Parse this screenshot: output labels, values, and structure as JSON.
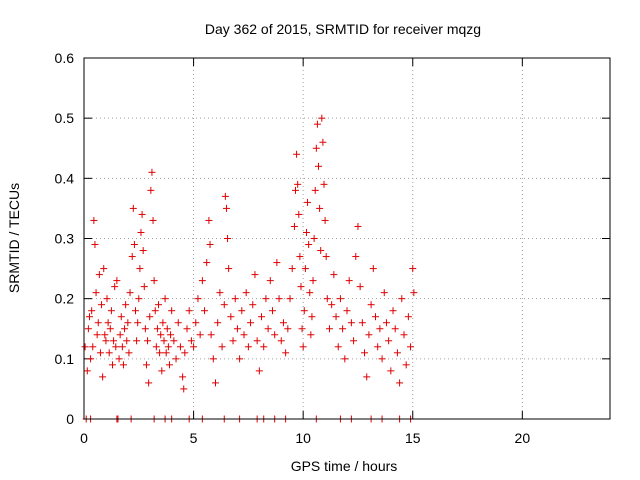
{
  "chart_data": {
    "type": "scatter",
    "title": "Day 362 of 2015, SRMTID for receiver mqzg",
    "xlabel": "GPS time / hours",
    "ylabel": "SRMTID / TECUs",
    "xlim": [
      0,
      24
    ],
    "ylim": [
      0,
      0.6
    ],
    "xticks": [
      "0",
      "5",
      "10",
      "15",
      "20"
    ],
    "yticks": [
      "0",
      "0.1",
      "0.2",
      "0.3",
      "0.4",
      "0.5",
      "0.6"
    ],
    "grid": true,
    "marker": "+",
    "color": "#e00000",
    "series": [
      {
        "name": "SRMTID",
        "points": [
          [
            0.05,
            0.12
          ],
          [
            0.1,
            0.0
          ],
          [
            0.15,
            0.08
          ],
          [
            0.2,
            0.15
          ],
          [
            0.25,
            0.17
          ],
          [
            0.3,
            0.1
          ],
          [
            0.35,
            0.18
          ],
          [
            0.4,
            0.12
          ],
          [
            0.45,
            0.33
          ],
          [
            0.5,
            0.29
          ],
          [
            0.55,
            0.21
          ],
          [
            0.6,
            0.14
          ],
          [
            0.65,
            0.16
          ],
          [
            0.7,
            0.24
          ],
          [
            0.75,
            0.11
          ],
          [
            0.8,
            0.19
          ],
          [
            0.85,
            0.07
          ],
          [
            0.9,
            0.25
          ],
          [
            0.95,
            0.14
          ],
          [
            1.0,
            0.13
          ],
          [
            1.05,
            0.2
          ],
          [
            1.1,
            0.16
          ],
          [
            1.15,
            0.11
          ],
          [
            1.2,
            0.15
          ],
          [
            1.25,
            0.18
          ],
          [
            1.3,
            0.09
          ],
          [
            1.35,
            0.13
          ],
          [
            1.4,
            0.22
          ],
          [
            1.45,
            0.12
          ],
          [
            1.5,
            0.23
          ],
          [
            1.55,
            0.0
          ],
          [
            1.6,
            0.1
          ],
          [
            1.65,
            0.14
          ],
          [
            1.7,
            0.17
          ],
          [
            1.75,
            0.12
          ],
          [
            1.8,
            0.09
          ],
          [
            1.85,
            0.15
          ],
          [
            1.9,
            0.19
          ],
          [
            1.95,
            0.13
          ],
          [
            2.0,
            0.16
          ],
          [
            2.05,
            0.11
          ],
          [
            2.1,
            0.21
          ],
          [
            2.15,
            0.0
          ],
          [
            2.2,
            0.27
          ],
          [
            2.25,
            0.35
          ],
          [
            2.3,
            0.29
          ],
          [
            2.35,
            0.18
          ],
          [
            2.4,
            0.13
          ],
          [
            2.45,
            0.16
          ],
          [
            2.5,
            0.2
          ],
          [
            2.55,
            0.25
          ],
          [
            2.6,
            0.31
          ],
          [
            2.65,
            0.34
          ],
          [
            2.7,
            0.28
          ],
          [
            2.75,
            0.22
          ],
          [
            2.8,
            0.15
          ],
          [
            2.85,
            0.09
          ],
          [
            2.9,
            0.13
          ],
          [
            2.95,
            0.06
          ],
          [
            3.0,
            0.17
          ],
          [
            3.05,
            0.38
          ],
          [
            3.1,
            0.41
          ],
          [
            3.15,
            0.33
          ],
          [
            3.2,
            0.23
          ],
          [
            3.25,
            0.18
          ],
          [
            3.3,
            0.12
          ],
          [
            3.35,
            0.15
          ],
          [
            3.4,
            0.19
          ],
          [
            3.45,
            0.11
          ],
          [
            3.5,
            0.14
          ],
          [
            3.55,
            0.08
          ],
          [
            3.6,
            0.16
          ],
          [
            3.65,
            0.13
          ],
          [
            3.7,
            0.2
          ],
          [
            3.75,
            0.11
          ],
          [
            3.8,
            0.15
          ],
          [
            3.85,
            0.12
          ],
          [
            3.9,
            0.09
          ],
          [
            3.95,
            0.14
          ],
          [
            4.0,
            0.18
          ],
          [
            4.1,
            0.13
          ],
          [
            4.2,
            0.1
          ],
          [
            4.3,
            0.16
          ],
          [
            4.4,
            0.12
          ],
          [
            4.5,
            0.07
          ],
          [
            4.55,
            0.05
          ],
          [
            4.6,
            0.11
          ],
          [
            4.7,
            0.15
          ],
          [
            4.8,
            0.18
          ],
          [
            4.9,
            0.13
          ],
          [
            5.0,
            0.12
          ],
          [
            5.1,
            0.16
          ],
          [
            5.2,
            0.2
          ],
          [
            5.3,
            0.14
          ],
          [
            5.4,
            0.23
          ],
          [
            5.5,
            0.18
          ],
          [
            5.6,
            0.26
          ],
          [
            5.7,
            0.33
          ],
          [
            5.75,
            0.29
          ],
          [
            5.8,
            0.14
          ],
          [
            5.9,
            0.1
          ],
          [
            6.0,
            0.06
          ],
          [
            6.1,
            0.16
          ],
          [
            6.2,
            0.21
          ],
          [
            6.3,
            0.12
          ],
          [
            6.4,
            0.19
          ],
          [
            6.45,
            0.37
          ],
          [
            6.5,
            0.35
          ],
          [
            6.55,
            0.3
          ],
          [
            6.6,
            0.25
          ],
          [
            6.7,
            0.17
          ],
          [
            6.8,
            0.13
          ],
          [
            6.9,
            0.2
          ],
          [
            7.0,
            0.15
          ],
          [
            7.1,
            0.1
          ],
          [
            7.2,
            0.18
          ],
          [
            7.3,
            0.14
          ],
          [
            7.4,
            0.21
          ],
          [
            7.5,
            0.12
          ],
          [
            7.6,
            0.16
          ],
          [
            7.7,
            0.19
          ],
          [
            7.8,
            0.24
          ],
          [
            7.9,
            0.13
          ],
          [
            8.0,
            0.08
          ],
          [
            8.1,
            0.17
          ],
          [
            8.2,
            0.12
          ],
          [
            8.3,
            0.2
          ],
          [
            8.4,
            0.15
          ],
          [
            8.5,
            0.23
          ],
          [
            8.6,
            0.18
          ],
          [
            8.7,
            0.14
          ],
          [
            8.8,
            0.26
          ],
          [
            8.9,
            0.2
          ],
          [
            9.0,
            0.13
          ],
          [
            9.1,
            0.16
          ],
          [
            9.2,
            0.11
          ],
          [
            9.3,
            0.15
          ],
          [
            9.4,
            0.2
          ],
          [
            9.5,
            0.25
          ],
          [
            9.6,
            0.32
          ],
          [
            9.65,
            0.38
          ],
          [
            9.7,
            0.44
          ],
          [
            9.75,
            0.39
          ],
          [
            9.8,
            0.34
          ],
          [
            9.85,
            0.27
          ],
          [
            9.9,
            0.22
          ],
          [
            9.95,
            0.15
          ],
          [
            10.0,
            0.12
          ],
          [
            10.05,
            0.18
          ],
          [
            10.1,
            0.25
          ],
          [
            10.15,
            0.31
          ],
          [
            10.2,
            0.36
          ],
          [
            10.25,
            0.29
          ],
          [
            10.3,
            0.21
          ],
          [
            10.35,
            0.14
          ],
          [
            10.4,
            0.17
          ],
          [
            10.45,
            0.23
          ],
          [
            10.5,
            0.3
          ],
          [
            10.55,
            0.38
          ],
          [
            10.6,
            0.45
          ],
          [
            10.65,
            0.49
          ],
          [
            10.7,
            0.42
          ],
          [
            10.75,
            0.35
          ],
          [
            10.8,
            0.28
          ],
          [
            10.85,
            0.5
          ],
          [
            10.9,
            0.46
          ],
          [
            10.95,
            0.39
          ],
          [
            11.0,
            0.33
          ],
          [
            11.05,
            0.27
          ],
          [
            11.1,
            0.2
          ],
          [
            11.2,
            0.15
          ],
          [
            11.3,
            0.19
          ],
          [
            11.4,
            0.24
          ],
          [
            11.5,
            0.17
          ],
          [
            11.6,
            0.12
          ],
          [
            11.7,
            0.2
          ],
          [
            11.8,
            0.15
          ],
          [
            11.9,
            0.1
          ],
          [
            12.0,
            0.18
          ],
          [
            12.1,
            0.23
          ],
          [
            12.2,
            0.16
          ],
          [
            12.3,
            0.13
          ],
          [
            12.4,
            0.27
          ],
          [
            12.5,
            0.32
          ],
          [
            12.6,
            0.22
          ],
          [
            12.7,
            0.16
          ],
          [
            12.8,
            0.11
          ],
          [
            12.9,
            0.07
          ],
          [
            13.0,
            0.14
          ],
          [
            13.1,
            0.19
          ],
          [
            13.2,
            0.25
          ],
          [
            13.3,
            0.17
          ],
          [
            13.4,
            0.12
          ],
          [
            13.5,
            0.15
          ],
          [
            13.6,
            0.1
          ],
          [
            13.7,
            0.21
          ],
          [
            13.8,
            0.16
          ],
          [
            13.9,
            0.13
          ],
          [
            14.0,
            0.08
          ],
          [
            14.1,
            0.18
          ],
          [
            14.2,
            0.15
          ],
          [
            14.3,
            0.11
          ],
          [
            14.4,
            0.06
          ],
          [
            14.5,
            0.2
          ],
          [
            14.6,
            0.14
          ],
          [
            14.7,
            0.09
          ],
          [
            14.8,
            0.17
          ],
          [
            14.9,
            0.12
          ],
          [
            15.0,
            0.25
          ],
          [
            15.05,
            0.21
          ],
          [
            0.3,
            0.0
          ],
          [
            1.5,
            0.0
          ],
          [
            3.2,
            0.0
          ],
          [
            3.7,
            0.0
          ],
          [
            4.0,
            0.0
          ],
          [
            4.8,
            0.0
          ],
          [
            5.4,
            0.0
          ],
          [
            6.4,
            0.0
          ],
          [
            7.1,
            0.0
          ],
          [
            7.9,
            0.0
          ],
          [
            8.2,
            0.0
          ],
          [
            8.7,
            0.0
          ],
          [
            9.2,
            0.0
          ],
          [
            10.6,
            0.0
          ],
          [
            11.7,
            0.0
          ],
          [
            12.2,
            0.0
          ],
          [
            13.1,
            0.0
          ],
          [
            13.6,
            0.0
          ],
          [
            14.4,
            0.0
          ],
          [
            14.9,
            0.0
          ]
        ]
      }
    ]
  }
}
